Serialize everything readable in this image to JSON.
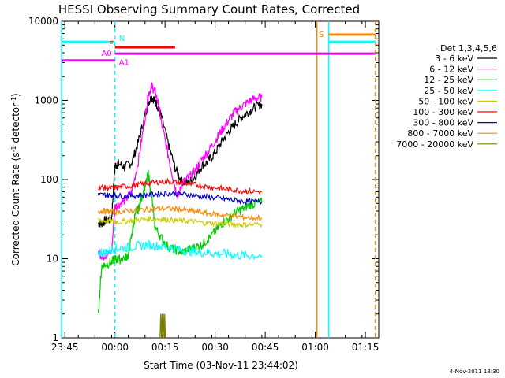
{
  "chart_data": {
    "type": "line",
    "title": "HESSI Observing Summary Count Rates, Corrected",
    "xlabel": "Start Time (03-Nov-11 23:44:02)",
    "ylabel": "Corrected Count Rate (s⁻¹ detector⁻¹)",
    "ylabel_parts": [
      "Corrected Count Rate (s",
      "-1",
      " detector",
      "-1",
      ")"
    ],
    "yscale": "log",
    "ylim": [
      1,
      10000
    ],
    "xlim_minutes": [
      0,
      95
    ],
    "x_unit": "minutes since 23:44:02",
    "xticks": [
      {
        "label": "23:45",
        "minute": 1
      },
      {
        "label": "00:00",
        "minute": 16
      },
      {
        "label": "00:15",
        "minute": 31
      },
      {
        "label": "00:30",
        "minute": 46
      },
      {
        "label": "00:45",
        "minute": 61
      },
      {
        "label": "01:00",
        "minute": 76
      },
      {
        "label": "01:15",
        "minute": 91
      }
    ],
    "yticks": [
      {
        "label": "1",
        "value": 1
      },
      {
        "label": "10",
        "value": 10
      },
      {
        "label": "100",
        "value": 100
      },
      {
        "label": "1000",
        "value": 1000
      },
      {
        "label": "10000",
        "value": 10000
      }
    ],
    "legend_title": "Det 1,3,4,5,6",
    "series": [
      {
        "name": "3 - 6 keV",
        "color": "#000000",
        "x": [
          11,
          12,
          13,
          15,
          16,
          17,
          19,
          21,
          23,
          25,
          26,
          27,
          28,
          29,
          30,
          32,
          34,
          36,
          38,
          40,
          42,
          44,
          46,
          48,
          50,
          52,
          54,
          56,
          58,
          60
        ],
        "values": [
          28,
          28,
          30,
          32,
          150,
          160,
          145,
          165,
          300,
          650,
          950,
          1100,
          1000,
          800,
          600,
          280,
          140,
          95,
          90,
          110,
          150,
          170,
          220,
          300,
          400,
          500,
          620,
          720,
          820,
          900
        ]
      },
      {
        "name": "6 - 12 keV",
        "color": "#ff00ff",
        "x": [
          11,
          12,
          13,
          15,
          16,
          17,
          19,
          21,
          23,
          25,
          26,
          27,
          28,
          29,
          30,
          32,
          34,
          35,
          36,
          38,
          40,
          42,
          44,
          46,
          48,
          50,
          52,
          54,
          56,
          58,
          60
        ],
        "values": [
          12,
          11,
          11,
          12,
          45,
          48,
          55,
          70,
          170,
          600,
          1200,
          1500,
          1300,
          900,
          500,
          200,
          80,
          60,
          90,
          105,
          130,
          180,
          230,
          310,
          420,
          560,
          720,
          840,
          960,
          1060,
          1100
        ]
      },
      {
        "name": "12 - 25 keV",
        "color": "#00cc00",
        "x": [
          11,
          12,
          13,
          15,
          16,
          17,
          19,
          20,
          21,
          22,
          23,
          24,
          25,
          26,
          27,
          28,
          30,
          32,
          34,
          36,
          38,
          40,
          42,
          44,
          46,
          48,
          50,
          52,
          54,
          56,
          58,
          60
        ],
        "values": [
          2,
          8,
          8.5,
          9,
          10,
          9.5,
          10.5,
          11,
          20,
          35,
          42,
          60,
          80,
          120,
          60,
          25,
          18,
          14,
          13,
          12,
          13,
          14,
          15,
          18,
          22,
          28,
          32,
          38,
          42,
          47,
          50,
          52
        ]
      },
      {
        "name": "25 - 50 keV",
        "color": "#00ffff",
        "x": [
          11,
          13,
          15,
          17,
          20,
          23,
          26,
          29,
          32,
          35,
          38,
          41,
          44,
          47,
          50,
          53,
          56,
          60
        ],
        "values": [
          12,
          12,
          13,
          13.5,
          14,
          14.5,
          15,
          14.5,
          14,
          13,
          12.5,
          12,
          12,
          11.5,
          11.5,
          11,
          11,
          11
        ]
      },
      {
        "name": "50 - 100 keV",
        "color": "#cccc00",
        "x": [
          11,
          13,
          15,
          17,
          20,
          23,
          26,
          29,
          32,
          35,
          38,
          41,
          44,
          47,
          50,
          53,
          56,
          60
        ],
        "values": [
          30,
          30,
          30,
          29,
          30,
          31,
          32,
          32,
          31,
          30,
          30,
          29,
          28,
          28,
          27.5,
          27,
          27,
          27
        ]
      },
      {
        "name": "100 - 300 keV",
        "color": "#ff0000",
        "x": [
          11,
          13,
          15,
          17,
          20,
          23,
          26,
          29,
          32,
          35,
          38,
          41,
          44,
          47,
          50,
          53,
          56,
          60
        ],
        "values": [
          80,
          79,
          78,
          80,
          83,
          86,
          90,
          93,
          95,
          92,
          88,
          85,
          80,
          78,
          75,
          73,
          71,
          70
        ]
      },
      {
        "name": "300 - 800 keV",
        "color": "#0000cc",
        "x": [
          11,
          13,
          15,
          17,
          20,
          23,
          26,
          29,
          32,
          35,
          38,
          41,
          44,
          47,
          50,
          53,
          56,
          60
        ],
        "values": [
          64,
          64,
          63,
          62,
          62,
          63,
          64,
          66,
          67,
          66,
          64,
          62,
          60,
          58,
          56,
          54,
          53,
          52
        ]
      },
      {
        "name": "800 - 7000 keV",
        "color": "#ff8800",
        "x": [
          11,
          13,
          15,
          17,
          20,
          23,
          26,
          29,
          32,
          35,
          38,
          41,
          44,
          47,
          50,
          53,
          56,
          60
        ],
        "values": [
          40,
          40,
          39,
          39,
          40,
          41,
          42,
          43,
          43,
          42,
          40,
          39,
          37,
          36,
          35,
          34,
          33,
          33
        ]
      },
      {
        "name": "7000 - 20000 keV",
        "color": "#808000",
        "x": [
          29.5,
          29.7,
          29.9,
          30.1,
          30.3,
          30.5,
          30.7,
          30.9,
          31.1
        ],
        "values": [
          1,
          2,
          1,
          2,
          1,
          2,
          1,
          2,
          1
        ]
      }
    ],
    "flag_bars": [
      {
        "label": "N",
        "color": "#00ffff",
        "segments": [
          [
            0,
            16
          ],
          [
            80,
            94
          ]
        ],
        "level": 5500
      },
      {
        "label": "F",
        "color": "#ff0000",
        "segments": [
          [
            16,
            34
          ]
        ],
        "level": 4700
      },
      {
        "label": "A0",
        "color": "#ff00ff",
        "segments": [
          [
            16,
            94
          ]
        ],
        "level": 3900
      },
      {
        "label": "A1",
        "color": "#ff00ff",
        "segments": [
          [
            0,
            16
          ]
        ],
        "level": 3200
      },
      {
        "label": "S",
        "color": "#ff8800",
        "segments": [
          [
            80,
            94
          ]
        ],
        "level": 6800
      }
    ],
    "vertical_markers": [
      {
        "minute": 16,
        "color": "#00ffff",
        "style": "dashed"
      },
      {
        "minute": 94,
        "color": "#ff8800",
        "style": "dashed"
      },
      {
        "minute": 76.5,
        "color": "#ff8800",
        "style": "solid"
      },
      {
        "minute": 80,
        "color": "#00ffff",
        "style": "solid"
      },
      {
        "minute": 0,
        "color": "#00ffff",
        "style": "solid"
      }
    ],
    "footer_stamp": "4-Nov-2011 18:30"
  }
}
